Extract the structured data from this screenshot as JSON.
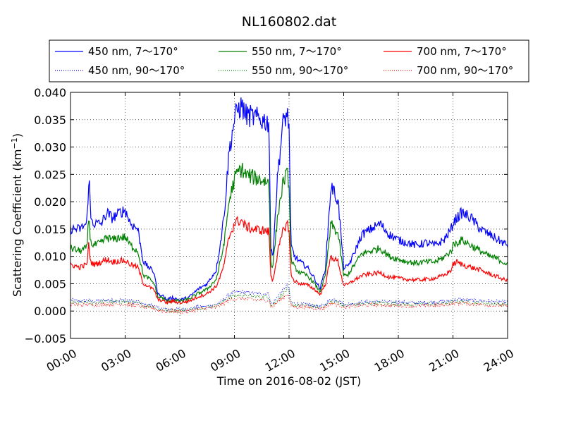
{
  "chart_data": {
    "type": "line",
    "title": "NL160802.dat",
    "xlabel": "Time on 2016-08-02 (JST)",
    "ylabel_main": "Scattering Coefficient (km",
    "ylabel_sup": "−1",
    "ylabel_close": ")",
    "x_unit": "hours",
    "xlim": [
      0,
      24
    ],
    "ylim": [
      -0.005,
      0.04
    ],
    "xticks": [
      0,
      3,
      6,
      9,
      12,
      15,
      18,
      21,
      24
    ],
    "xtick_labels": [
      "00:00",
      "03:00",
      "06:00",
      "09:00",
      "12:00",
      "15:00",
      "18:00",
      "21:00",
      "24:00"
    ],
    "yticks": [
      -0.005,
      0.0,
      0.005,
      0.01,
      0.015,
      0.02,
      0.025,
      0.03,
      0.035,
      0.04
    ],
    "ytick_labels": [
      "−0.005",
      "0.000",
      "0.005",
      "0.010",
      "0.015",
      "0.020",
      "0.025",
      "0.030",
      "0.035",
      "0.040"
    ],
    "grid": true,
    "legend_position": "top, above plot",
    "x": [
      0.0,
      0.5,
      0.9,
      1.0,
      1.05,
      1.1,
      1.3,
      1.7,
      2.0,
      2.3,
      2.7,
      3.0,
      3.3,
      3.7,
      4.0,
      4.3,
      4.6,
      4.8,
      5.0,
      5.3,
      5.6,
      6.0,
      6.5,
      7.0,
      7.5,
      8.0,
      8.3,
      8.5,
      8.7,
      9.0,
      9.2,
      9.4,
      9.6,
      10.0,
      10.5,
      10.9,
      11.0,
      11.1,
      11.4,
      11.7,
      11.9,
      12.0,
      12.1,
      12.3,
      12.6,
      13.0,
      13.4,
      13.7,
      14.0,
      14.3,
      14.7,
      14.9,
      15.0,
      15.2,
      15.5,
      16.0,
      16.5,
      17.0,
      17.5,
      18.0,
      18.5,
      19.0,
      19.5,
      20.0,
      20.5,
      20.9,
      21.0,
      21.2,
      21.5,
      22.0,
      22.5,
      23.0,
      23.5,
      24.0
    ],
    "series": [
      {
        "name": "450 nm, 7～170°",
        "color": "#0000ff",
        "style": "solid",
        "values": [
          0.015,
          0.015,
          0.016,
          0.024,
          0.023,
          0.017,
          0.016,
          0.016,
          0.018,
          0.017,
          0.018,
          0.0185,
          0.016,
          0.015,
          0.009,
          0.008,
          0.007,
          0.003,
          0.003,
          0.002,
          0.0025,
          0.002,
          0.0025,
          0.004,
          0.005,
          0.0075,
          0.014,
          0.02,
          0.029,
          0.035,
          0.037,
          0.0375,
          0.036,
          0.0355,
          0.035,
          0.0345,
          0.011,
          0.01,
          0.026,
          0.035,
          0.036,
          0.034,
          0.012,
          0.01,
          0.009,
          0.008,
          0.006,
          0.004,
          0.008,
          0.023,
          0.02,
          0.012,
          0.008,
          0.008,
          0.01,
          0.014,
          0.015,
          0.016,
          0.014,
          0.013,
          0.0125,
          0.012,
          0.0125,
          0.012,
          0.013,
          0.015,
          0.016,
          0.017,
          0.018,
          0.017,
          0.015,
          0.014,
          0.013,
          0.012
        ]
      },
      {
        "name": "550 nm, 7～170°",
        "color": "#008000",
        "style": "solid",
        "values": [
          0.0115,
          0.011,
          0.0115,
          0.017,
          0.016,
          0.0125,
          0.012,
          0.0125,
          0.0135,
          0.013,
          0.0135,
          0.0135,
          0.012,
          0.011,
          0.0065,
          0.006,
          0.005,
          0.0025,
          0.0025,
          0.0018,
          0.002,
          0.0018,
          0.0022,
          0.0032,
          0.004,
          0.0058,
          0.01,
          0.014,
          0.02,
          0.024,
          0.0255,
          0.026,
          0.025,
          0.0245,
          0.024,
          0.0235,
          0.009,
          0.008,
          0.018,
          0.024,
          0.025,
          0.0235,
          0.0095,
          0.008,
          0.007,
          0.0065,
          0.005,
          0.0035,
          0.0065,
          0.016,
          0.014,
          0.009,
          0.0065,
          0.0065,
          0.008,
          0.0105,
          0.011,
          0.0115,
          0.01,
          0.0095,
          0.009,
          0.0088,
          0.009,
          0.009,
          0.0098,
          0.011,
          0.012,
          0.0125,
          0.013,
          0.012,
          0.011,
          0.01,
          0.0095,
          0.0085
        ]
      },
      {
        "name": "700 nm, 7～170°",
        "color": "#ff0000",
        "style": "solid",
        "values": [
          0.0085,
          0.008,
          0.0085,
          0.012,
          0.011,
          0.009,
          0.0085,
          0.009,
          0.0095,
          0.009,
          0.0092,
          0.0092,
          0.0085,
          0.008,
          0.005,
          0.0045,
          0.0038,
          0.002,
          0.002,
          0.0015,
          0.0018,
          0.0015,
          0.0018,
          0.0026,
          0.0032,
          0.0045,
          0.007,
          0.0095,
          0.0135,
          0.016,
          0.0165,
          0.0165,
          0.0155,
          0.015,
          0.0148,
          0.0145,
          0.0065,
          0.0055,
          0.011,
          0.015,
          0.016,
          0.015,
          0.0065,
          0.0055,
          0.005,
          0.0048,
          0.004,
          0.003,
          0.005,
          0.01,
          0.009,
          0.006,
          0.0048,
          0.0048,
          0.0055,
          0.0065,
          0.0068,
          0.007,
          0.0062,
          0.006,
          0.0058,
          0.0057,
          0.0058,
          0.006,
          0.0065,
          0.0075,
          0.0085,
          0.009,
          0.0085,
          0.008,
          0.0075,
          0.0068,
          0.0062,
          0.0055
        ]
      },
      {
        "name": "450 nm, 90～170°",
        "color": "#0000ff",
        "style": "dotted",
        "values": [
          0.002,
          0.0018,
          0.0019,
          0.002,
          0.0019,
          0.0018,
          0.0018,
          0.0019,
          0.002,
          0.0019,
          0.002,
          0.002,
          0.0018,
          0.0017,
          0.0012,
          0.0011,
          0.001,
          0.0005,
          0.0005,
          0.0003,
          0.0004,
          0.0003,
          0.0004,
          0.0007,
          0.0009,
          0.0012,
          0.0018,
          0.0024,
          0.003,
          0.0034,
          0.0035,
          0.0035,
          0.0034,
          0.0033,
          0.0032,
          0.0032,
          0.0015,
          0.0013,
          0.0028,
          0.004,
          0.0048,
          0.004,
          0.0016,
          0.0014,
          0.0012,
          0.0012,
          0.001,
          0.0008,
          0.0012,
          0.0022,
          0.002,
          0.0015,
          0.0012,
          0.0012,
          0.0014,
          0.0016,
          0.0017,
          0.0018,
          0.0016,
          0.0016,
          0.0015,
          0.0015,
          0.0016,
          0.0016,
          0.0017,
          0.0019,
          0.002,
          0.0021,
          0.0021,
          0.002,
          0.0019,
          0.0018,
          0.0017,
          0.0016
        ]
      },
      {
        "name": "550 nm, 90～170°",
        "color": "#008000",
        "style": "dotted",
        "values": [
          0.0016,
          0.0015,
          0.0016,
          0.0017,
          0.0016,
          0.0015,
          0.0015,
          0.0016,
          0.0017,
          0.0016,
          0.0017,
          0.0017,
          0.0015,
          0.0014,
          0.001,
          0.0009,
          0.0008,
          0.0003,
          0.0003,
          0.0001,
          0.0002,
          0.0001,
          0.0002,
          0.0005,
          0.0007,
          0.001,
          0.0015,
          0.002,
          0.0025,
          0.0028,
          0.0029,
          0.0029,
          0.0028,
          0.0027,
          0.0026,
          0.0026,
          0.0012,
          0.001,
          0.0023,
          0.0032,
          0.004,
          0.0033,
          0.0013,
          0.0011,
          0.001,
          0.001,
          0.0008,
          0.0006,
          0.001,
          0.0018,
          0.0016,
          0.0012,
          0.001,
          0.001,
          0.0012,
          0.0013,
          0.0014,
          0.0015,
          0.0013,
          0.0013,
          0.0012,
          0.0012,
          0.0013,
          0.0013,
          0.0014,
          0.0016,
          0.0017,
          0.0017,
          0.0017,
          0.0016,
          0.0015,
          0.0014,
          0.0013,
          0.0012
        ]
      },
      {
        "name": "700 nm, 90～170°",
        "color": "#ff0000",
        "style": "dotted",
        "values": [
          0.0012,
          0.0011,
          0.0012,
          0.0013,
          0.0012,
          0.0011,
          0.0011,
          0.0012,
          0.0013,
          0.0012,
          0.0013,
          0.0013,
          0.0011,
          0.001,
          0.0007,
          0.0006,
          0.0005,
          0.0001,
          0.0001,
          -0.0002,
          0.0,
          -0.0001,
          0.0,
          0.0003,
          0.0005,
          0.0007,
          0.0012,
          0.0016,
          0.002,
          0.0022,
          0.0023,
          0.0023,
          0.0022,
          0.0021,
          0.002,
          0.002,
          0.0009,
          0.0007,
          0.0018,
          0.0025,
          0.0032,
          0.0026,
          0.001,
          0.0008,
          0.0007,
          0.0007,
          0.0005,
          0.0004,
          0.0007,
          0.0014,
          0.0012,
          0.0009,
          0.0007,
          0.0007,
          0.0009,
          0.001,
          0.0011,
          0.0012,
          0.001,
          0.001,
          0.0009,
          0.0009,
          0.001,
          0.001,
          0.0011,
          0.0013,
          0.0014,
          0.0014,
          0.0014,
          0.0013,
          0.0012,
          0.0011,
          0.001,
          0.0009
        ]
      }
    ]
  }
}
